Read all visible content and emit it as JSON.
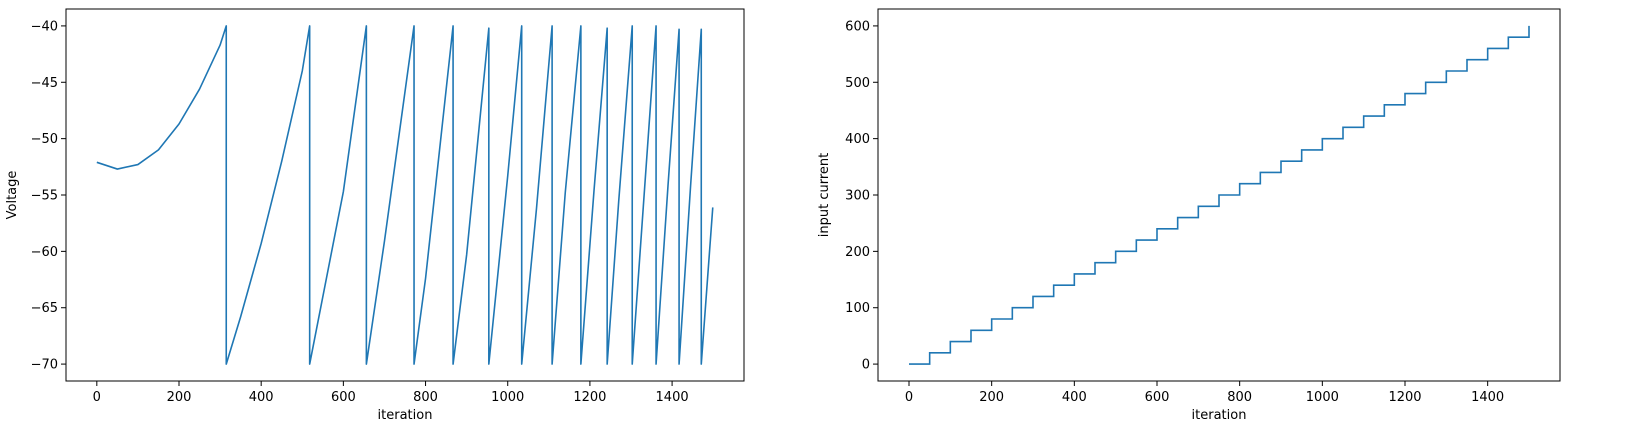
{
  "chart_data": [
    {
      "type": "line",
      "title": "",
      "xlabel": "iteration",
      "ylabel": "Voltage",
      "xlim": [
        -75,
        1575
      ],
      "ylim": [
        -71.5,
        -38.5
      ],
      "xticks": [
        0,
        200,
        400,
        600,
        800,
        1000,
        1200,
        1400
      ],
      "yticks": [
        -70,
        -65,
        -60,
        -55,
        -50,
        -45,
        -40
      ],
      "xtick_labels": [
        "0",
        "200",
        "400",
        "600",
        "800",
        "1000",
        "1200",
        "1400"
      ],
      "ytick_labels": [
        "−70",
        "−65",
        "−60",
        "−55",
        "−50",
        "−45",
        "−40"
      ],
      "grid": false,
      "color": "#1f77b4",
      "series": [
        {
          "x": [
            0,
            50,
            100,
            150,
            200,
            250,
            300,
            315,
            315,
            350,
            400,
            450,
            500,
            518,
            518,
            600,
            656,
            656,
            700,
            772,
            772,
            800,
            867,
            867,
            900,
            954,
            954,
            1000,
            1034,
            1034,
            1070,
            1108,
            1108,
            1140,
            1178,
            1178,
            1210,
            1242,
            1242,
            1270,
            1303,
            1303,
            1330,
            1361,
            1361,
            1390,
            1417,
            1417,
            1445,
            1471,
            1471,
            1499
          ],
          "y": [
            -52.1,
            -52.7,
            -52.3,
            -51.0,
            -48.7,
            -45.6,
            -41.7,
            -40.0,
            -70.0,
            -65.8,
            -59.3,
            -52.0,
            -44.0,
            -40.0,
            -70.0,
            -54.7,
            -40.0,
            -70.0,
            -59.1,
            -40.0,
            -70.0,
            -62.4,
            -40.0,
            -70.0,
            -60.3,
            -40.2,
            -70.0,
            -53.3,
            -40.0,
            -70.0,
            -56.2,
            -40.0,
            -70.0,
            -54.8,
            -40.0,
            -70.0,
            -54.6,
            -40.2,
            -70.0,
            -55.6,
            -40.0,
            -70.0,
            -56.0,
            -40.0,
            -70.0,
            -54.2,
            -40.3,
            -70.0,
            -54.2,
            -40.3,
            -70.0,
            -56.1
          ]
        }
      ]
    },
    {
      "type": "line",
      "title": "",
      "xlabel": "iteration",
      "ylabel": "input current",
      "xlim": [
        -75,
        1575
      ],
      "ylim": [
        -30,
        630
      ],
      "xticks": [
        0,
        200,
        400,
        600,
        800,
        1000,
        1200,
        1400
      ],
      "yticks": [
        0,
        100,
        200,
        300,
        400,
        500,
        600
      ],
      "xtick_labels": [
        "0",
        "200",
        "400",
        "600",
        "800",
        "1000",
        "1200",
        "1400"
      ],
      "ytick_labels": [
        "0",
        "100",
        "200",
        "300",
        "400",
        "500",
        "600"
      ],
      "grid": false,
      "color": "#1f77b4",
      "series": [
        {
          "step_width": 50,
          "step_height": 20,
          "x_end": 1500,
          "y_end": 600
        }
      ]
    }
  ]
}
